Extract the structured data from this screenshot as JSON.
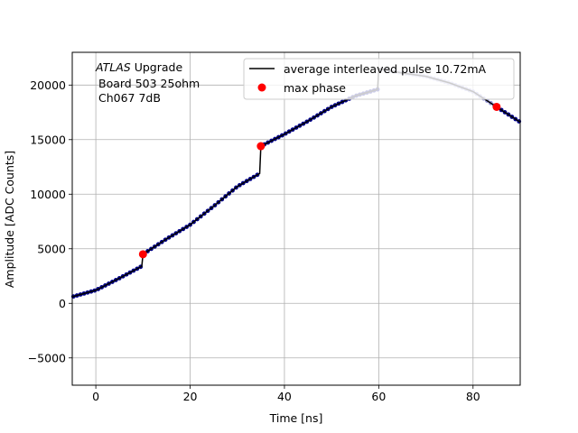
{
  "chart_data": {
    "type": "line",
    "title": "",
    "xlabel": "Time [ns]",
    "ylabel": "Amplitude [ADC Counts]",
    "xlim": [
      -5,
      90
    ],
    "ylim": [
      -7500,
      23000
    ],
    "xticks": [
      0,
      20,
      40,
      60,
      80
    ],
    "yticks": [
      -5000,
      0,
      5000,
      10000,
      15000,
      20000
    ],
    "grid": true,
    "legend_position": "upper-right",
    "annotation": {
      "italic": "ATLAS",
      "line1_rest": " Upgrade",
      "line2": "Board 503 25ohm",
      "line3": "Ch067 7dB"
    },
    "series": [
      {
        "name": "average interleaved pulse 10.72mA",
        "color": "#000000",
        "x": [
          -5,
          0,
          5,
          9.75,
          10,
          15,
          20,
          25,
          30,
          34.75,
          35,
          40,
          45,
          50,
          55,
          59.75,
          60,
          65,
          70,
          75,
          80,
          85,
          90
        ],
        "y": [
          600,
          1200,
          2300,
          3400,
          4500,
          5900,
          7200,
          8900,
          10700,
          11900,
          14400,
          15500,
          16700,
          18000,
          19000,
          19600,
          21500,
          21100,
          20800,
          20200,
          19400,
          18000,
          16600
        ]
      },
      {
        "name": "max phase",
        "color": "#ff0000",
        "x": [
          10,
          35,
          85
        ],
        "y": [
          4500,
          14400,
          18000
        ]
      }
    ]
  }
}
